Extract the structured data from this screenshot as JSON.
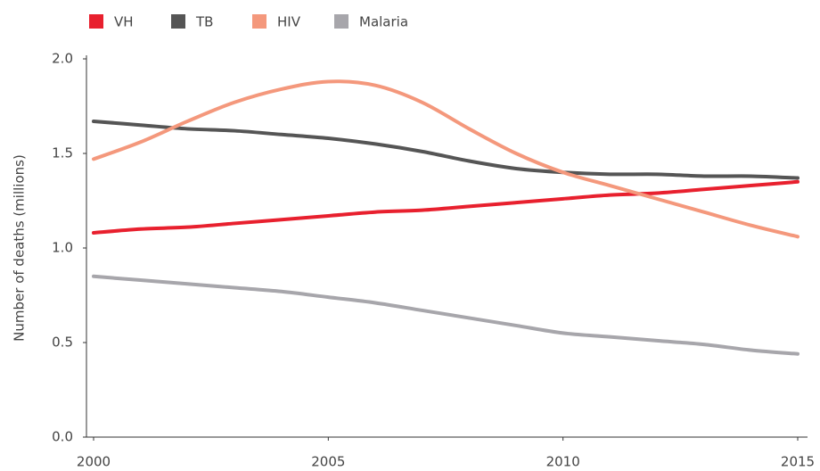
{
  "chart_data": {
    "type": "line",
    "x": [
      2000,
      2001,
      2002,
      2003,
      2004,
      2005,
      2006,
      2007,
      2008,
      2009,
      2010,
      2011,
      2012,
      2013,
      2014,
      2015
    ],
    "y_label": "Number of deaths (millions)",
    "series": [
      {
        "name": "VH",
        "color": "#e8202e",
        "values": [
          1.08,
          1.1,
          1.11,
          1.13,
          1.15,
          1.17,
          1.19,
          1.2,
          1.22,
          1.24,
          1.26,
          1.28,
          1.29,
          1.31,
          1.33,
          1.35
        ]
      },
      {
        "name": "TB",
        "color": "#555555",
        "values": [
          1.67,
          1.65,
          1.63,
          1.62,
          1.6,
          1.58,
          1.55,
          1.51,
          1.46,
          1.42,
          1.4,
          1.39,
          1.39,
          1.38,
          1.38,
          1.37
        ]
      },
      {
        "name": "HIV",
        "color": "#f4987c",
        "values": [
          1.47,
          1.56,
          1.67,
          1.77,
          1.84,
          1.88,
          1.86,
          1.77,
          1.63,
          1.5,
          1.4,
          1.33,
          1.26,
          1.19,
          1.12,
          1.06
        ]
      },
      {
        "name": "Malaria",
        "color": "#a7a6ab",
        "values": [
          0.85,
          0.83,
          0.81,
          0.79,
          0.77,
          0.74,
          0.71,
          0.67,
          0.63,
          0.59,
          0.55,
          0.53,
          0.51,
          0.49,
          0.46,
          0.44
        ]
      }
    ],
    "xlim": [
      2000,
      2015
    ],
    "xticks": [
      2000,
      2005,
      2010,
      2015
    ],
    "ylim": [
      0,
      2
    ],
    "yticks": [
      {
        "value": 0,
        "label": "0.0"
      },
      0.5,
      {
        "value": 1,
        "label": "1.0"
      },
      1.5,
      {
        "value": 2,
        "label": "2.0"
      }
    ],
    "legend": "top-left",
    "grid": false
  }
}
